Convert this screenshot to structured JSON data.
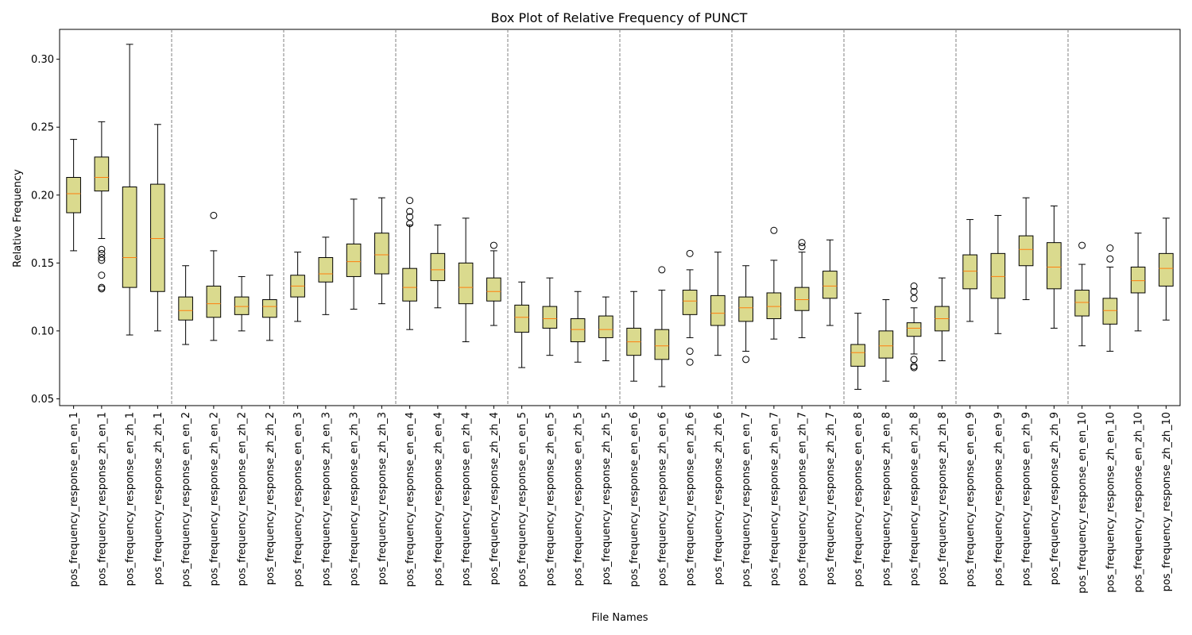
{
  "chart_data": {
    "type": "boxplot",
    "title": "Box Plot of Relative Frequency of PUNCT",
    "xlabel": "File Names",
    "ylabel": "Relative Frequency",
    "ylim": [
      0.045,
      0.322
    ],
    "yticks": [
      0.05,
      0.1,
      0.15,
      0.2,
      0.25,
      0.3
    ],
    "ytick_labels": [
      "0.05",
      "0.10",
      "0.15",
      "0.20",
      "0.25",
      "0.30"
    ],
    "group_separators_after": [
      4,
      8,
      12,
      16,
      20,
      24,
      28,
      32,
      36
    ],
    "colors": {
      "box_fill": "#dada8e",
      "box_edge": "#000000",
      "median": "#ff7f0e",
      "separator": "#808080"
    },
    "categories": [
      "pos_frequency_response_en_en_1",
      "pos_frequency_response_zh_en_1",
      "pos_frequency_response_en_zh_1",
      "pos_frequency_response_zh_zh_1",
      "pos_frequency_response_en_en_2",
      "pos_frequency_response_zh_en_2",
      "pos_frequency_response_en_zh_2",
      "pos_frequency_response_zh_zh_2",
      "pos_frequency_response_en_en_3",
      "pos_frequency_response_zh_en_3",
      "pos_frequency_response_en_zh_3",
      "pos_frequency_response_zh_zh_3",
      "pos_frequency_response_en_en_4",
      "pos_frequency_response_zh_en_4",
      "pos_frequency_response_en_zh_4",
      "pos_frequency_response_zh_zh_4",
      "pos_frequency_response_en_en_5",
      "pos_frequency_response_zh_en_5",
      "pos_frequency_response_en_zh_5",
      "pos_frequency_response_zh_zh_5",
      "pos_frequency_response_en_en_6",
      "pos_frequency_response_zh_en_6",
      "pos_frequency_response_en_zh_6",
      "pos_frequency_response_zh_zh_6",
      "pos_frequency_response_en_en_7",
      "pos_frequency_response_zh_en_7",
      "pos_frequency_response_en_zh_7",
      "pos_frequency_response_zh_zh_7",
      "pos_frequency_response_en_en_8",
      "pos_frequency_response_zh_en_8",
      "pos_frequency_response_en_zh_8",
      "pos_frequency_response_zh_zh_8",
      "pos_frequency_response_en_en_9",
      "pos_frequency_response_zh_en_9",
      "pos_frequency_response_en_zh_9",
      "pos_frequency_response_zh_zh_9",
      "pos_frequency_response_en_en_10",
      "pos_frequency_response_zh_en_10",
      "pos_frequency_response_en_zh_10",
      "pos_frequency_response_zh_zh_10"
    ],
    "boxes": [
      {
        "whislo": 0.159,
        "q1": 0.187,
        "med": 0.201,
        "q3": 0.213,
        "whishi": 0.241,
        "fliers": []
      },
      {
        "whislo": 0.168,
        "q1": 0.203,
        "med": 0.213,
        "q3": 0.228,
        "whishi": 0.254,
        "fliers": [
          0.16,
          0.157,
          0.154,
          0.152,
          0.141,
          0.132,
          0.131
        ]
      },
      {
        "whislo": 0.097,
        "q1": 0.132,
        "med": 0.154,
        "q3": 0.206,
        "whishi": 0.311,
        "fliers": []
      },
      {
        "whislo": 0.1,
        "q1": 0.129,
        "med": 0.168,
        "q3": 0.208,
        "whishi": 0.252,
        "fliers": []
      },
      {
        "whislo": 0.09,
        "q1": 0.108,
        "med": 0.115,
        "q3": 0.125,
        "whishi": 0.148,
        "fliers": []
      },
      {
        "whislo": 0.093,
        "q1": 0.11,
        "med": 0.12,
        "q3": 0.133,
        "whishi": 0.159,
        "fliers": [
          0.185
        ]
      },
      {
        "whislo": 0.1,
        "q1": 0.112,
        "med": 0.118,
        "q3": 0.125,
        "whishi": 0.14,
        "fliers": []
      },
      {
        "whislo": 0.093,
        "q1": 0.11,
        "med": 0.118,
        "q3": 0.123,
        "whishi": 0.141,
        "fliers": []
      },
      {
        "whislo": 0.107,
        "q1": 0.125,
        "med": 0.133,
        "q3": 0.141,
        "whishi": 0.158,
        "fliers": []
      },
      {
        "whislo": 0.112,
        "q1": 0.136,
        "med": 0.142,
        "q3": 0.154,
        "whishi": 0.169,
        "fliers": []
      },
      {
        "whislo": 0.116,
        "q1": 0.14,
        "med": 0.151,
        "q3": 0.164,
        "whishi": 0.197,
        "fliers": []
      },
      {
        "whislo": 0.12,
        "q1": 0.142,
        "med": 0.156,
        "q3": 0.172,
        "whishi": 0.198,
        "fliers": []
      },
      {
        "whislo": 0.101,
        "q1": 0.122,
        "med": 0.132,
        "q3": 0.146,
        "whishi": 0.178,
        "fliers": [
          0.196,
          0.188,
          0.184,
          0.179
        ]
      },
      {
        "whislo": 0.117,
        "q1": 0.137,
        "med": 0.145,
        "q3": 0.157,
        "whishi": 0.178,
        "fliers": []
      },
      {
        "whislo": 0.092,
        "q1": 0.12,
        "med": 0.132,
        "q3": 0.15,
        "whishi": 0.183,
        "fliers": []
      },
      {
        "whislo": 0.104,
        "q1": 0.122,
        "med": 0.129,
        "q3": 0.139,
        "whishi": 0.159,
        "fliers": [
          0.163
        ]
      },
      {
        "whislo": 0.073,
        "q1": 0.099,
        "med": 0.11,
        "q3": 0.119,
        "whishi": 0.136,
        "fliers": []
      },
      {
        "whislo": 0.082,
        "q1": 0.102,
        "med": 0.109,
        "q3": 0.118,
        "whishi": 0.139,
        "fliers": []
      },
      {
        "whislo": 0.077,
        "q1": 0.092,
        "med": 0.101,
        "q3": 0.109,
        "whishi": 0.129,
        "fliers": []
      },
      {
        "whislo": 0.078,
        "q1": 0.095,
        "med": 0.101,
        "q3": 0.111,
        "whishi": 0.125,
        "fliers": []
      },
      {
        "whislo": 0.063,
        "q1": 0.082,
        "med": 0.092,
        "q3": 0.102,
        "whishi": 0.129,
        "fliers": []
      },
      {
        "whislo": 0.059,
        "q1": 0.079,
        "med": 0.089,
        "q3": 0.101,
        "whishi": 0.13,
        "fliers": [
          0.145
        ]
      },
      {
        "whislo": 0.095,
        "q1": 0.112,
        "med": 0.122,
        "q3": 0.13,
        "whishi": 0.145,
        "fliers": [
          0.157,
          0.085,
          0.077
        ]
      },
      {
        "whislo": 0.082,
        "q1": 0.104,
        "med": 0.113,
        "q3": 0.126,
        "whishi": 0.158,
        "fliers": []
      },
      {
        "whislo": 0.085,
        "q1": 0.107,
        "med": 0.117,
        "q3": 0.125,
        "whishi": 0.148,
        "fliers": [
          0.079
        ]
      },
      {
        "whislo": 0.094,
        "q1": 0.109,
        "med": 0.118,
        "q3": 0.128,
        "whishi": 0.152,
        "fliers": [
          0.174
        ]
      },
      {
        "whislo": 0.095,
        "q1": 0.115,
        "med": 0.123,
        "q3": 0.132,
        "whishi": 0.158,
        "fliers": [
          0.165,
          0.162
        ]
      },
      {
        "whislo": 0.104,
        "q1": 0.124,
        "med": 0.133,
        "q3": 0.144,
        "whishi": 0.167,
        "fliers": []
      },
      {
        "whislo": 0.057,
        "q1": 0.074,
        "med": 0.084,
        "q3": 0.09,
        "whishi": 0.113,
        "fliers": []
      },
      {
        "whislo": 0.063,
        "q1": 0.08,
        "med": 0.089,
        "q3": 0.1,
        "whishi": 0.123,
        "fliers": []
      },
      {
        "whislo": 0.083,
        "q1": 0.096,
        "med": 0.102,
        "q3": 0.106,
        "whishi": 0.117,
        "fliers": [
          0.133,
          0.129,
          0.124,
          0.079,
          0.074,
          0.073
        ]
      },
      {
        "whislo": 0.078,
        "q1": 0.1,
        "med": 0.109,
        "q3": 0.118,
        "whishi": 0.139,
        "fliers": []
      },
      {
        "whislo": 0.107,
        "q1": 0.131,
        "med": 0.144,
        "q3": 0.156,
        "whishi": 0.182,
        "fliers": []
      },
      {
        "whislo": 0.098,
        "q1": 0.124,
        "med": 0.14,
        "q3": 0.157,
        "whishi": 0.185,
        "fliers": []
      },
      {
        "whislo": 0.123,
        "q1": 0.148,
        "med": 0.16,
        "q3": 0.17,
        "whishi": 0.198,
        "fliers": []
      },
      {
        "whislo": 0.102,
        "q1": 0.131,
        "med": 0.147,
        "q3": 0.165,
        "whishi": 0.192,
        "fliers": []
      },
      {
        "whislo": 0.089,
        "q1": 0.111,
        "med": 0.121,
        "q3": 0.13,
        "whishi": 0.149,
        "fliers": [
          0.163
        ]
      },
      {
        "whislo": 0.085,
        "q1": 0.105,
        "med": 0.115,
        "q3": 0.124,
        "whishi": 0.147,
        "fliers": [
          0.161,
          0.153
        ]
      },
      {
        "whislo": 0.1,
        "q1": 0.128,
        "med": 0.137,
        "q3": 0.147,
        "whishi": 0.172,
        "fliers": []
      },
      {
        "whislo": 0.108,
        "q1": 0.133,
        "med": 0.146,
        "q3": 0.157,
        "whishi": 0.183,
        "fliers": []
      }
    ]
  }
}
